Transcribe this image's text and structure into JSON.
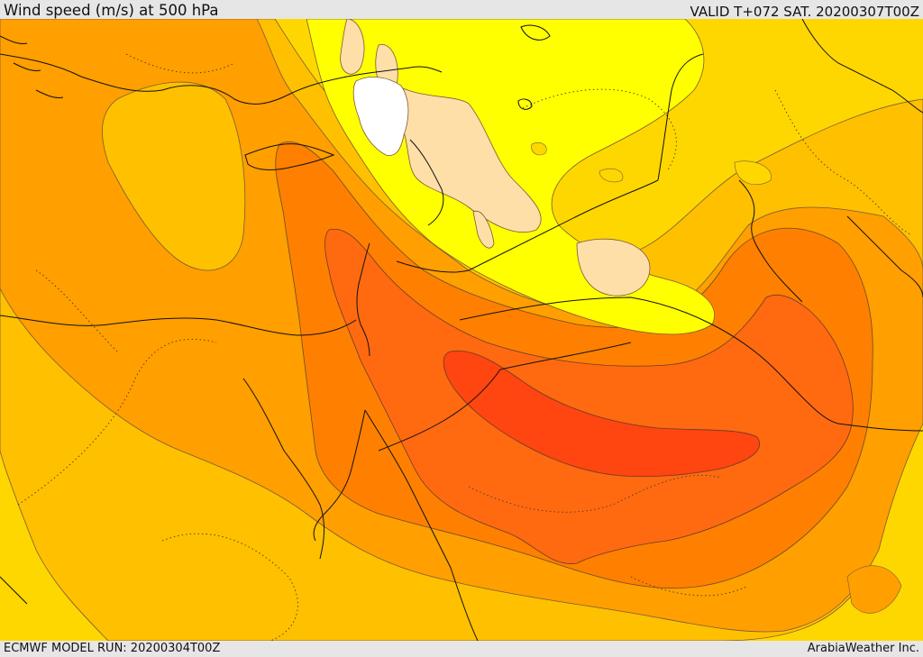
{
  "header": {
    "title": "Wind speed (m/s) at 500 hPa",
    "valid": "VALID T+072 SAT. 20200307T00Z"
  },
  "footer": {
    "model_run": "ECMWF MODEL RUN: 20200304T00Z",
    "credit": "ArabiaWeather Inc."
  },
  "colors": {
    "band_light": "#ffdfa8",
    "band_yellow": "#ffff00",
    "band_gold": "#ffd700",
    "band_amber": "#ffc000",
    "band_orange": "#ff9f00",
    "band_dark_orange": "#ff8000",
    "band_red_orange": "#ff6a10",
    "band_core": "#ff4510",
    "calm": "#ffffff"
  }
}
